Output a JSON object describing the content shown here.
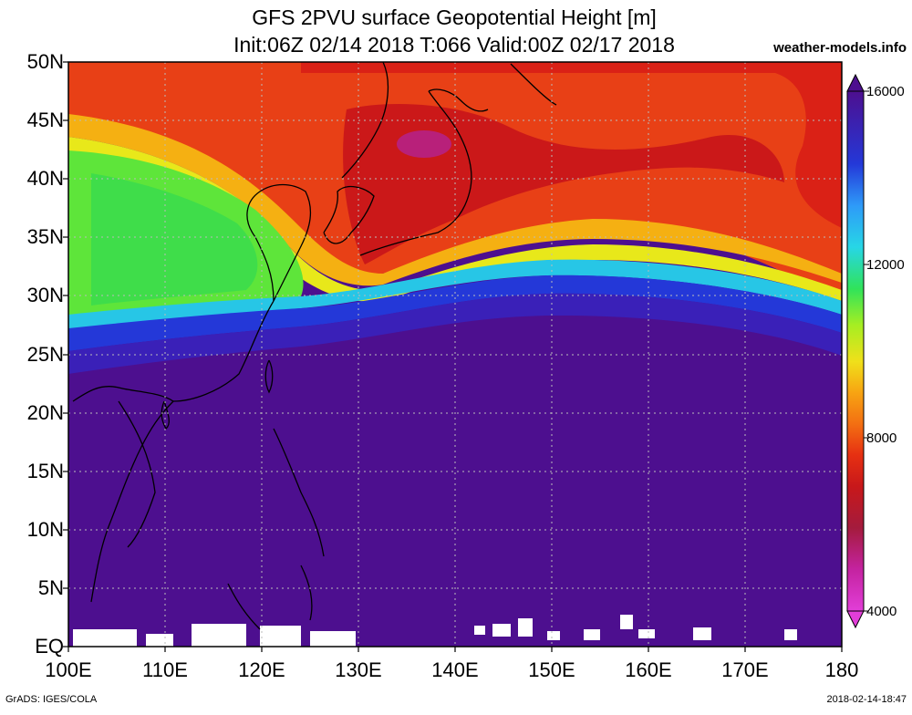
{
  "title": {
    "line1": "GFS 2PVU surface Geopotential Height [m]",
    "line2": "Init:06Z 02/14 2018 T:066 Valid:00Z 02/17 2018",
    "site": "weather-models.info"
  },
  "axes": {
    "lat_labels": [
      "50N",
      "45N",
      "40N",
      "35N",
      "30N",
      "25N",
      "20N",
      "15N",
      "10N",
      "5N",
      "EQ"
    ],
    "lon_labels": [
      "100E",
      "110E",
      "120E",
      "130E",
      "140E",
      "150E",
      "160E",
      "170E",
      "180"
    ]
  },
  "colorbar": {
    "labels": [
      "16000",
      "12000",
      "8000",
      "4000"
    ],
    "colors": [
      "#4d0f8f",
      "#3a20b8",
      "#2438d8",
      "#2a64f0",
      "#2e9af8",
      "#27d6e6",
      "#33eaa8",
      "#30e35a",
      "#62ea2c",
      "#a6ee22",
      "#e4f01a",
      "#f7d314",
      "#f7a412",
      "#f36f12",
      "#e84012",
      "#d81e16",
      "#b8141a",
      "#a41b3d",
      "#b81f74",
      "#d423aa",
      "#e23ed8"
    ]
  },
  "footer": {
    "left": "GrADS: IGES/COLA",
    "right": "2018-02-14-18:47"
  }
}
